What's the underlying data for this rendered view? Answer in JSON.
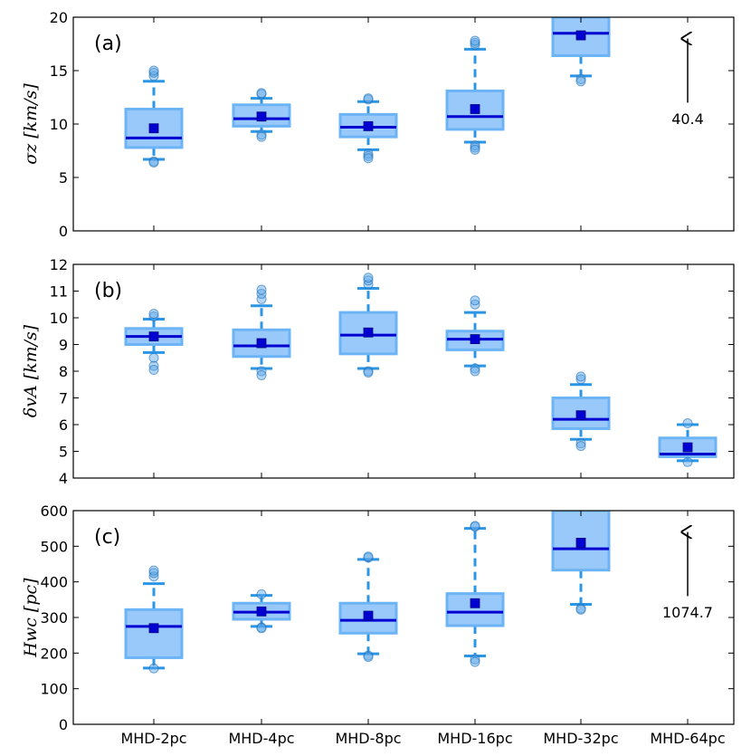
{
  "chart_data": {
    "type": "box",
    "categories": [
      "MHD-2pc",
      "MHD-4pc",
      "MHD-8pc",
      "MHD-16pc",
      "MHD-32pc",
      "MHD-64pc"
    ],
    "colors": {
      "box_fill": "#99c9fb",
      "box_edge": "#6cb4f5",
      "whisker": "#2b95e6",
      "median": "#0000d0",
      "mean": "#0000d0",
      "flier": "#5aa6e8"
    },
    "panels": [
      {
        "id": "a",
        "label": "(a)",
        "ylabel": "σz [km/s]",
        "ylim": [
          0,
          20
        ],
        "yticks": [
          "0",
          "5",
          "10",
          "15",
          "20"
        ],
        "annotation": {
          "category": "MHD-64pc",
          "text": "40.4"
        },
        "boxes": [
          {
            "q1": 7.8,
            "median": 8.7,
            "q3": 11.4,
            "whislo": 6.7,
            "whishi": 14.0,
            "mean": 9.6,
            "fliers_low": [
              6.5,
              6.4
            ],
            "fliers_high": [
              14.5,
              14.8,
              15.0
            ]
          },
          {
            "q1": 9.8,
            "median": 10.5,
            "q3": 11.8,
            "whislo": 9.3,
            "whishi": 12.4,
            "mean": 10.7,
            "fliers_low": [
              9.0,
              8.8
            ],
            "fliers_high": [
              12.8,
              12.9
            ]
          },
          {
            "q1": 8.8,
            "median": 9.7,
            "q3": 10.9,
            "whislo": 7.6,
            "whishi": 12.1,
            "mean": 9.8,
            "fliers_low": [
              7.2,
              7.0,
              6.8
            ],
            "fliers_high": [
              12.3,
              12.4
            ]
          },
          {
            "q1": 9.5,
            "median": 10.7,
            "q3": 13.1,
            "whislo": 8.3,
            "whishi": 17.0,
            "mean": 11.4,
            "fliers_low": [
              8.0,
              7.8,
              7.6
            ],
            "fliers_high": [
              17.4,
              17.6,
              17.8
            ]
          },
          {
            "q1": 16.4,
            "median": 18.5,
            "q3": 20.0,
            "whislo": 14.5,
            "whishi": 20.0,
            "mean": 18.3,
            "fliers_low": [
              14.2,
              14.0
            ],
            "fliers_high": []
          },
          null
        ]
      },
      {
        "id": "b",
        "label": "(b)",
        "ylabel": "δvA [km/s]",
        "ylim": [
          4,
          12
        ],
        "yticks": [
          "4",
          "5",
          "6",
          "7",
          "8",
          "9",
          "10",
          "11",
          "12"
        ],
        "annotation": null,
        "boxes": [
          {
            "q1": 9.0,
            "median": 9.3,
            "q3": 9.6,
            "whislo": 8.7,
            "whishi": 9.95,
            "mean": 9.3,
            "fliers_low": [
              8.5,
              8.2,
              8.05
            ],
            "fliers_high": [
              10.05,
              10.15
            ]
          },
          {
            "q1": 8.55,
            "median": 8.95,
            "q3": 9.55,
            "whislo": 8.1,
            "whishi": 10.45,
            "mean": 9.05,
            "fliers_low": [
              8.0,
              7.85
            ],
            "fliers_high": [
              10.7,
              10.9,
              11.05
            ]
          },
          {
            "q1": 8.65,
            "median": 9.35,
            "q3": 10.2,
            "whislo": 8.1,
            "whishi": 11.1,
            "mean": 9.45,
            "fliers_low": [
              8.0,
              7.95
            ],
            "fliers_high": [
              11.25,
              11.4,
              11.5
            ]
          },
          {
            "q1": 8.8,
            "median": 9.2,
            "q3": 9.5,
            "whislo": 8.2,
            "whishi": 10.2,
            "mean": 9.2,
            "fliers_low": [
              8.1,
              8.0
            ],
            "fliers_high": [
              10.5,
              10.65
            ]
          },
          {
            "q1": 5.85,
            "median": 6.2,
            "q3": 7.0,
            "whislo": 5.45,
            "whishi": 7.5,
            "mean": 6.35,
            "fliers_low": [
              5.3,
              5.2
            ],
            "fliers_high": [
              7.7,
              7.8
            ]
          },
          {
            "q1": 4.8,
            "median": 4.9,
            "q3": 5.5,
            "whislo": 4.65,
            "whishi": 6.0,
            "mean": 5.15,
            "fliers_low": [
              4.6
            ],
            "fliers_high": [
              6.05
            ]
          }
        ]
      },
      {
        "id": "c",
        "label": "(c)",
        "ylabel": "Hwc [pc]",
        "ylim": [
          0,
          600
        ],
        "yticks": [
          "0",
          "100",
          "200",
          "300",
          "400",
          "500",
          "600"
        ],
        "annotation": {
          "category": "MHD-64pc",
          "text": "1074.7"
        },
        "boxes": [
          {
            "q1": 187,
            "median": 275,
            "q3": 322,
            "whislo": 158,
            "whishi": 395,
            "mean": 270,
            "fliers_low": [
              157
            ],
            "fliers_high": [
              415,
              425,
              432
            ]
          },
          {
            "q1": 295,
            "median": 315,
            "q3": 340,
            "whislo": 275,
            "whishi": 362,
            "mean": 317,
            "fliers_low": [
              272,
              270
            ],
            "fliers_high": [
              365
            ]
          },
          {
            "q1": 256,
            "median": 292,
            "q3": 340,
            "whislo": 198,
            "whishi": 463,
            "mean": 305,
            "fliers_low": [
              193,
              189
            ],
            "fliers_high": [
              468,
              471
            ]
          },
          {
            "q1": 277,
            "median": 315,
            "q3": 367,
            "whislo": 192,
            "whishi": 550,
            "mean": 340,
            "fliers_low": [
              182,
              175
            ],
            "fliers_high": [
              555,
              557
            ]
          },
          {
            "q1": 433,
            "median": 493,
            "q3": 600,
            "whislo": 337,
            "whishi": 600,
            "mean": 510,
            "fliers_low": [
              325,
              322
            ],
            "fliers_high": []
          },
          null
        ]
      }
    ]
  }
}
